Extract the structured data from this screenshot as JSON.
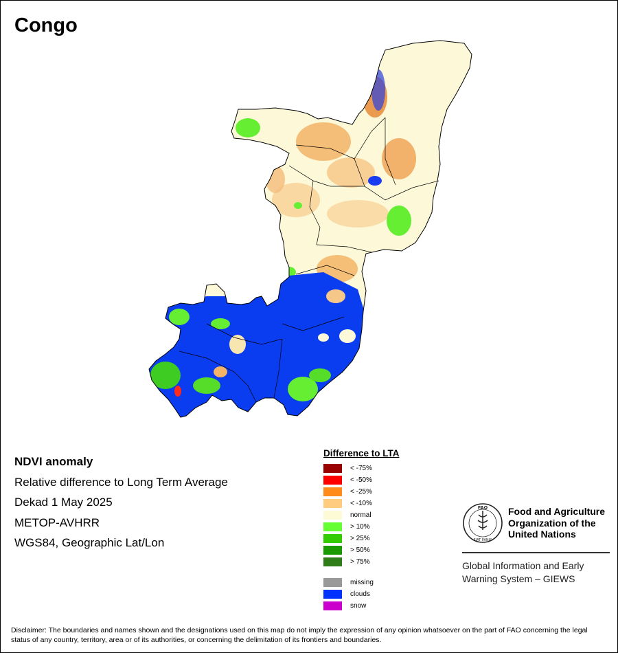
{
  "map": {
    "title": "Congo",
    "colors": {
      "normal": "#fdf9d8",
      "clouds": "#0a3cf0",
      "boundary": "#000000"
    }
  },
  "info": {
    "line1": "NDVI anomaly",
    "line2": "Relative difference to Long Term Average",
    "line3": "Dekad 1 May 2025",
    "line4": "METOP-AVHRR",
    "line5": "WGS84, Geographic Lat/Lon"
  },
  "legend": {
    "title": "Difference to LTA",
    "classes": [
      {
        "label": "< -75%",
        "color": "#990000"
      },
      {
        "label": "< -50%",
        "color": "#ff0000"
      },
      {
        "label": "< -25%",
        "color": "#ff8c1a"
      },
      {
        "label": "< -10%",
        "color": "#ffcc80"
      },
      {
        "label": "normal",
        "color": "#fdfbd6"
      },
      {
        "label": "> 10%",
        "color": "#66ff33"
      },
      {
        "label": "> 25%",
        "color": "#33cc00"
      },
      {
        "label": "> 50%",
        "color": "#1a9900"
      },
      {
        "label": "> 75%",
        "color": "#2e7d18"
      }
    ],
    "extra": [
      {
        "label": "missing",
        "color": "#999999"
      },
      {
        "label": "clouds",
        "color": "#0033ff"
      },
      {
        "label": "snow",
        "color": "#cc00cc"
      }
    ]
  },
  "fao": {
    "logo_icon": "fao-logo-icon",
    "logo_letters": "FAO",
    "logo_motto": "FIAT PANIS",
    "name_line1": "Food and Agriculture",
    "name_line2": "Organization of the",
    "name_line3": "United Nations",
    "giews_line1": "Global Information and Early",
    "giews_line2": "Warning System – GIEWS"
  },
  "disclaimer": "Disclaimer: The boundaries and names shown and the designations used on this map do not imply the expression of any opinion whatsoever on the part of FAO concerning the legal status of any country, territory, area or of its authorities, or concerning the delimitation of its frontiers and boundaries."
}
